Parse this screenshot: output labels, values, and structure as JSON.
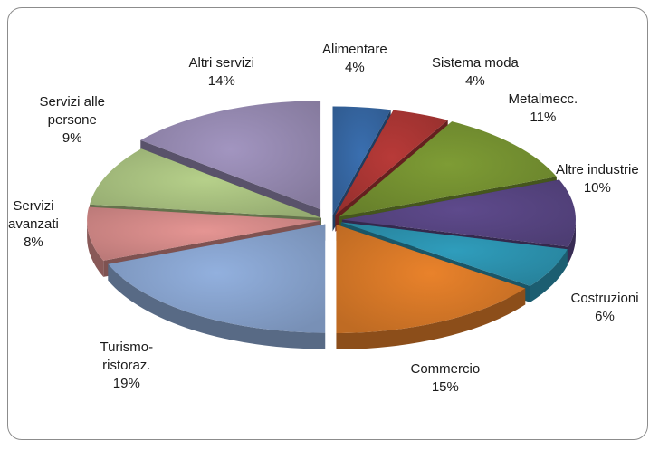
{
  "chart_data": {
    "type": "pie",
    "title": "",
    "categories": [
      "Alimentare",
      "Sistema moda",
      "Metalmecc.",
      "Altre industrie",
      "Costruzioni",
      "Commercio",
      "Turismo-ristoraz.",
      "Servizi avanzati",
      "Servizi alle persone",
      "Altri servizi"
    ],
    "values": [
      4,
      4,
      11,
      10,
      6,
      15,
      19,
      8,
      9,
      14
    ],
    "value_labels": [
      "4%",
      "4%",
      "11%",
      "10%",
      "6%",
      "15%",
      "19%",
      "8%",
      "9%",
      "14%"
    ],
    "label_lines": [
      [
        "Alimentare"
      ],
      [
        "Sistema moda"
      ],
      [
        "Metalmecc."
      ],
      [
        "Altre industrie"
      ],
      [
        "Costruzioni"
      ],
      [
        "Commercio"
      ],
      [
        "Turismo-",
        "ristoraz."
      ],
      [
        "Servizi",
        "avanzati"
      ],
      [
        "Servizi alle",
        "persone"
      ],
      [
        "Altri servizi"
      ]
    ],
    "colors": [
      "#3a6fb0",
      "#b83a38",
      "#7e9c35",
      "#5e4a8c",
      "#2f9dbc",
      "#e9822b",
      "#92b0de",
      "#e59593",
      "#b6d08a",
      "#a295c0"
    ],
    "style": "3D exploded pie",
    "legend": "none"
  }
}
